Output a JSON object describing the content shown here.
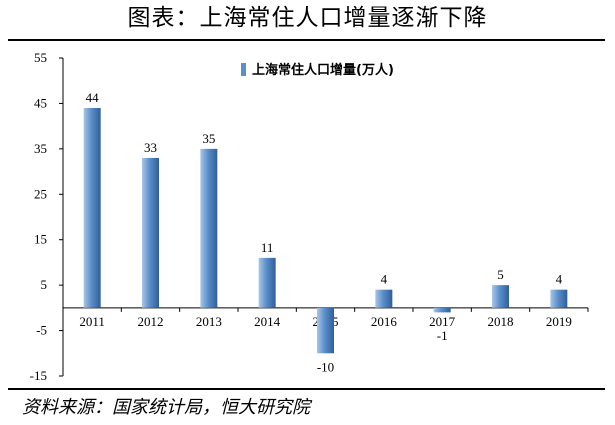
{
  "page_title": "图表：上海常住人口增量逐渐下降",
  "source_note": "资料来源：国家统计局，恒大研究院",
  "colors": {
    "bar_light": "#a9c6e6",
    "bar_mid": "#5b8fc9",
    "bar_dark": "#2f5f9a",
    "axis": "#000000"
  },
  "chart_data": {
    "type": "bar",
    "title": "",
    "xlabel": "",
    "ylabel": "",
    "categories": [
      "2011",
      "2012",
      "2013",
      "2014",
      "2015",
      "2016",
      "2017",
      "2018",
      "2019"
    ],
    "series": [
      {
        "name": "上海常住人口增量(万人)",
        "values": [
          44,
          33,
          35,
          11,
          -10,
          4,
          -1,
          5,
          4
        ],
        "labels": [
          "44",
          "33",
          "35",
          "11",
          "-10",
          "4",
          "-1",
          "5",
          "4"
        ]
      }
    ],
    "ylim": [
      -15,
      55
    ],
    "yticks": [
      "55",
      "45",
      "35",
      "25",
      "15",
      "5",
      "-5",
      "-15"
    ],
    "ytick_values": [
      55,
      45,
      35,
      25,
      15,
      5,
      -5,
      -15
    ],
    "grid": false,
    "legend_position": "top-center"
  }
}
